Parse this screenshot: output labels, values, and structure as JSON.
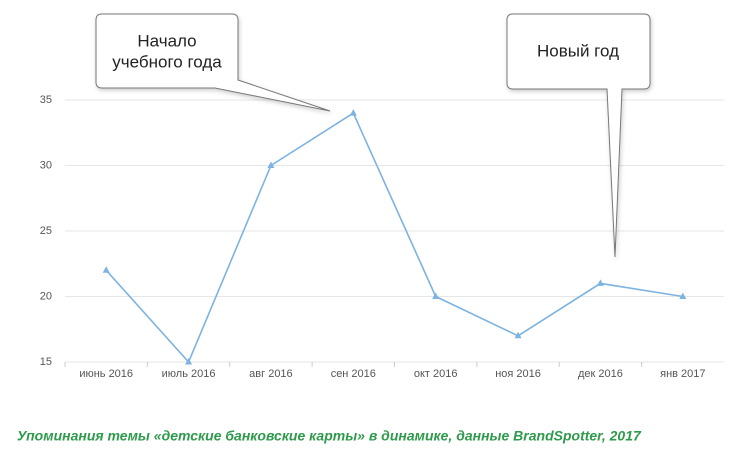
{
  "chart_data": {
    "type": "line",
    "categories": [
      "июнь 2016",
      "июль 2016",
      "авг 2016",
      "сен 2016",
      "окт 2016",
      "ноя 2016",
      "дек 2016",
      "янв 2017"
    ],
    "values": [
      22,
      15,
      30,
      34,
      20,
      17,
      21,
      20
    ],
    "color": "#7db3e0",
    "ylim": [
      15,
      35
    ],
    "yticks": [
      15,
      20,
      25,
      30,
      35
    ],
    "grid": true,
    "annotations": [
      [
        "Начало",
        "учебного года"
      ],
      [
        "Новый год"
      ]
    ],
    "caption": "Упоминания темы «детские банковские карты» в динамике, данные BrandSpotter, 2017"
  }
}
